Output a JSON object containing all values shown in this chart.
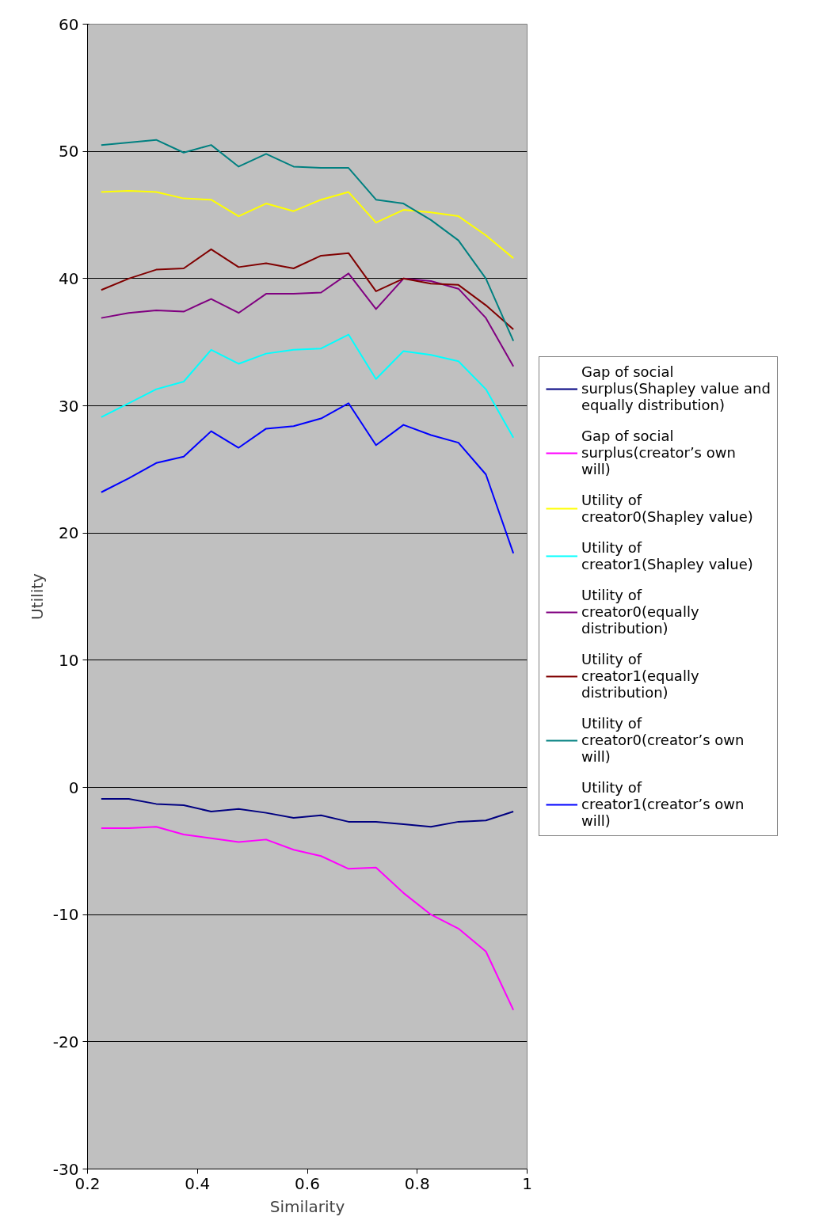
{
  "chart_data": {
    "type": "line",
    "xlabel": "Similarity",
    "ylabel": "Utility",
    "x": [
      0.225,
      0.275,
      0.325,
      0.375,
      0.425,
      0.475,
      0.525,
      0.575,
      0.625,
      0.675,
      0.725,
      0.775,
      0.825,
      0.875,
      0.925,
      0.975
    ],
    "xlim": [
      0.2,
      1
    ],
    "xticks": [
      0.2,
      0.4,
      0.6,
      0.8,
      1
    ],
    "ylim": [
      -30,
      60
    ],
    "yticks": [
      -30,
      -20,
      -10,
      0,
      10,
      20,
      30,
      40,
      50,
      60
    ],
    "grid": "y",
    "legend": "right",
    "marker": "none",
    "line_style": "solid",
    "series": [
      {
        "name": "Gap of social surplus(Shapley value and equally distribution)",
        "color": "#000080",
        "values": [
          -0.9,
          -0.9,
          -1.3,
          -1.4,
          -1.9,
          -1.7,
          -2.0,
          -2.4,
          -2.2,
          -2.7,
          -2.7,
          -2.9,
          -3.1,
          -2.7,
          -2.6,
          -1.9
        ]
      },
      {
        "name": "Gap of social surplus(creator’s own will)",
        "color": "#ff00ff",
        "values": [
          -3.2,
          -3.2,
          -3.1,
          -3.7,
          -4.0,
          -4.3,
          -4.1,
          -4.9,
          -5.4,
          -6.4,
          -6.3,
          -8.3,
          -10.0,
          -11.1,
          -12.9,
          -17.5
        ]
      },
      {
        "name": "Utility of creator0(Shapley value)",
        "color": "#ffff00",
        "values": [
          46.8,
          46.9,
          46.8,
          46.3,
          46.2,
          44.9,
          45.9,
          45.3,
          46.2,
          46.8,
          44.4,
          45.4,
          45.2,
          44.9,
          43.4,
          41.6
        ]
      },
      {
        "name": "Utility of creator1(Shapley value)",
        "color": "#00ffff",
        "values": [
          29.1,
          30.2,
          31.3,
          31.9,
          34.4,
          33.3,
          34.1,
          34.4,
          34.5,
          35.6,
          32.1,
          34.3,
          34.0,
          33.5,
          31.3,
          27.5
        ]
      },
      {
        "name": "Utility of creator0(equally distribution)",
        "color": "#800080",
        "values": [
          36.9,
          37.3,
          37.5,
          37.4,
          38.4,
          37.3,
          38.8,
          38.8,
          38.9,
          40.4,
          37.6,
          40.0,
          39.8,
          39.2,
          36.9,
          33.1
        ]
      },
      {
        "name": "Utility of creator1(equally distribution)",
        "color": "#800000",
        "values": [
          39.1,
          40.0,
          40.7,
          40.8,
          42.3,
          40.9,
          41.2,
          40.8,
          41.8,
          42.0,
          39.0,
          40.0,
          39.6,
          39.5,
          37.9,
          36.0
        ]
      },
      {
        "name": "Utility of creator0(creator’s own will)",
        "color": "#008080",
        "values": [
          50.5,
          50.7,
          50.9,
          49.9,
          50.5,
          48.8,
          49.8,
          48.8,
          48.7,
          48.7,
          46.2,
          45.9,
          44.6,
          43.0,
          40.0,
          35.1
        ]
      },
      {
        "name": "Utility of creator1(creator’s own will)",
        "color": "#0000ff",
        "values": [
          23.2,
          24.3,
          25.5,
          26.0,
          28.0,
          26.7,
          28.2,
          28.4,
          29.0,
          30.2,
          26.9,
          28.5,
          27.7,
          27.1,
          24.6,
          18.4
        ]
      }
    ]
  }
}
